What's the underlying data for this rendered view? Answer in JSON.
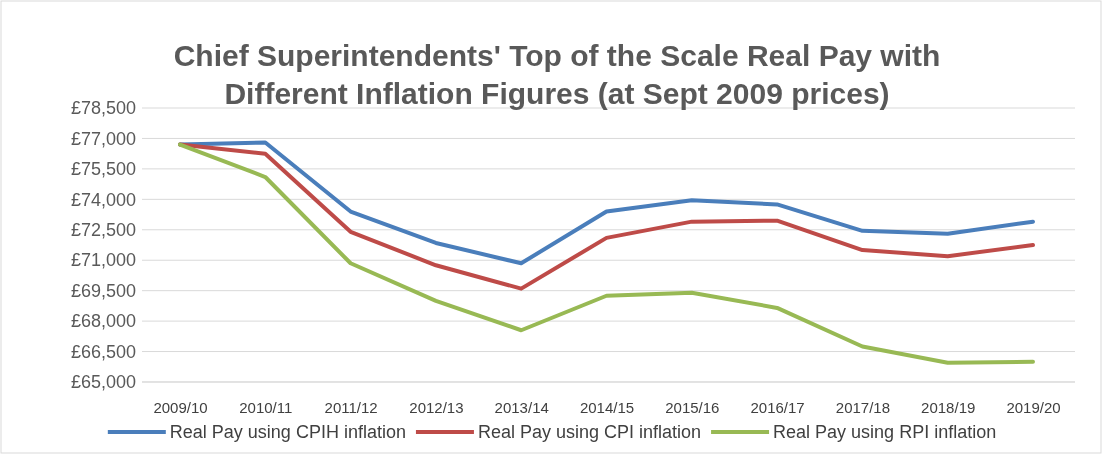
{
  "chart_data": {
    "type": "line",
    "title": "Chief Superintendents' Top of the Scale Real Pay with Different Inflation Figures (at Sept 2009 prices)",
    "categories": [
      "2009/10",
      "2010/11",
      "2011/12",
      "2012/13",
      "2013/14",
      "2014/15",
      "2015/16",
      "2016/17",
      "2017/18",
      "2018/19",
      "2019/20"
    ],
    "series": [
      {
        "name": "Real Pay using CPIH inflation",
        "color": "#4a7ebb",
        "values": [
          76700,
          76800,
          73400,
          71850,
          70850,
          73400,
          73950,
          73750,
          72450,
          72300,
          72900
        ]
      },
      {
        "name": "Real Pay using CPI inflation",
        "color": "#be4b48",
        "values": [
          76700,
          76250,
          72400,
          70750,
          69600,
          72100,
          72900,
          72950,
          71500,
          71200,
          71750
        ]
      },
      {
        "name": "Real Pay using RPI inflation",
        "color": "#98b954",
        "values": [
          76700,
          75100,
          70850,
          69000,
          67550,
          69250,
          69400,
          68650,
          66750,
          65950,
          66000
        ]
      }
    ],
    "ylim": [
      65000,
      78500
    ],
    "yticks": [
      {
        "value": 65000,
        "label": "£65,000"
      },
      {
        "value": 66500,
        "label": "£66,500"
      },
      {
        "value": 68000,
        "label": "£68,000"
      },
      {
        "value": 69500,
        "label": "£69,500"
      },
      {
        "value": 71000,
        "label": "£71,000"
      },
      {
        "value": 72500,
        "label": "£72,500"
      },
      {
        "value": 74000,
        "label": "£74,000"
      },
      {
        "value": 75500,
        "label": "£75,500"
      },
      {
        "value": 77000,
        "label": "£77,000"
      },
      {
        "value": 78500,
        "label": "£78,500"
      }
    ],
    "grid": "y",
    "legend": "bottom",
    "marker": "none",
    "line_style": "solid"
  }
}
